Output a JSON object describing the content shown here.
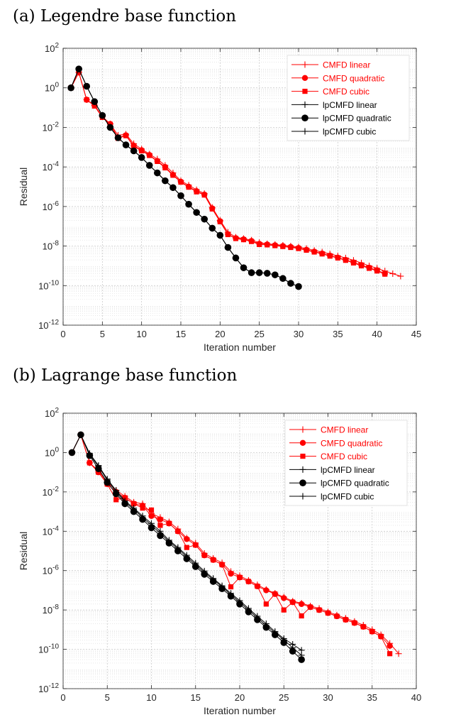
{
  "figure": {
    "caption_a": "(a) Legendre base function",
    "caption_b": "(b) Lagrange base function"
  },
  "chart_data": [
    {
      "type": "line",
      "log_y": true,
      "grid": true,
      "legend_position": "top-right",
      "xlabel": "Iteration number",
      "ylabel": "Residual",
      "xlim": [
        0,
        45
      ],
      "ylim": [
        1e-12,
        100
      ],
      "x_ticks": [
        "0",
        "5",
        "10",
        "15",
        "20",
        "25",
        "30",
        "35",
        "40",
        "45"
      ],
      "y_ticks": [
        {
          "base": "10",
          "exp": "2"
        },
        {
          "base": "10",
          "exp": "0"
        },
        {
          "base": "10",
          "exp": "-2"
        },
        {
          "base": "10",
          "exp": "-4"
        },
        {
          "base": "10",
          "exp": "-6"
        },
        {
          "base": "10",
          "exp": "-8"
        },
        {
          "base": "10",
          "exp": "-10"
        },
        {
          "base": "10",
          "exp": "-12"
        }
      ],
      "series": [
        {
          "name": "CMFD linear",
          "color": "#ff0000",
          "marker": "plus",
          "x": [
            1,
            2,
            3,
            4,
            5,
            6,
            7,
            8,
            9,
            10,
            11,
            12,
            13,
            14,
            15,
            16,
            17,
            18,
            19,
            20,
            21,
            22,
            23,
            24,
            25,
            26,
            27,
            28,
            29,
            30,
            31,
            32,
            33,
            34,
            35,
            36,
            37,
            38,
            39,
            40,
            41,
            42,
            43
          ],
          "y": [
            1,
            6,
            0.25,
            0.13,
            0.035,
            0.015,
            0.004,
            0.0045,
            0.0015,
            0.0008,
            0.00045,
            0.00025,
            0.00012,
            5e-05,
            2e-05,
            1.2e-05,
            7e-06,
            4.5e-06,
            9e-07,
            2e-07,
            5e-08,
            2.8e-08,
            2.4e-08,
            2e-08,
            1.5e-08,
            1.3e-08,
            1.2e-08,
            1.1e-08,
            1e-08,
            9e-09,
            7.5e-09,
            6e-09,
            5e-09,
            4e-09,
            3.2e-09,
            2.5e-09,
            1.9e-09,
            1.4e-09,
            1e-09,
            7.5e-10,
            5.5e-10,
            4e-10,
            3e-10
          ]
        },
        {
          "name": "CMFD quadratic",
          "color": "#ff0000",
          "marker": "circle",
          "x": [
            1,
            2,
            3,
            4,
            5,
            6,
            7,
            8,
            9,
            10,
            11,
            12,
            13,
            14,
            15,
            16,
            17,
            18,
            19,
            20,
            21,
            22,
            23,
            24,
            25,
            26,
            27,
            28,
            29,
            30,
            31,
            32,
            33,
            34,
            35,
            36,
            37,
            38,
            39,
            40,
            41
          ],
          "y": [
            1,
            6,
            0.25,
            0.13,
            0.035,
            0.015,
            0.003,
            0.004,
            0.0012,
            0.0007,
            0.0004,
            0.0002,
            0.0001,
            4e-05,
            1.8e-05,
            1e-05,
            6e-06,
            4e-06,
            8e-07,
            1.8e-07,
            4e-08,
            2.5e-08,
            2.2e-08,
            1.8e-08,
            1.3e-08,
            1.2e-08,
            1.1e-08,
            1e-08,
            9e-09,
            8e-09,
            6.5e-09,
            5.2e-09,
            4.2e-09,
            3.3e-09,
            2.6e-09,
            2e-09,
            1.5e-09,
            1.1e-09,
            8e-10,
            6e-10,
            4e-10
          ]
        },
        {
          "name": "CMFD cubic",
          "color": "#ff0000",
          "marker": "square",
          "x": [
            1,
            2,
            3,
            4,
            5,
            6,
            7,
            8,
            9,
            10,
            11,
            12,
            13,
            14,
            15,
            16,
            17,
            18,
            19,
            20,
            21,
            22,
            23,
            24,
            25,
            26,
            27,
            28,
            29,
            30,
            31,
            32,
            33,
            34,
            35,
            36,
            37,
            38,
            39,
            40,
            41
          ],
          "y": [
            1,
            6,
            0.25,
            0.12,
            0.032,
            0.014,
            0.0028,
            0.0038,
            0.0011,
            0.00065,
            0.00038,
            0.00019,
            9e-05,
            3.8e-05,
            1.7e-05,
            9.5e-06,
            5.5e-06,
            3.8e-06,
            7.5e-07,
            1.7e-07,
            3.8e-08,
            2.4e-08,
            2.1e-08,
            1.7e-08,
            1.2e-08,
            1.15e-08,
            1.05e-08,
            9.5e-09,
            8.5e-09,
            7.5e-09,
            6.2e-09,
            5e-09,
            4e-09,
            3.1e-09,
            2.5e-09,
            1.9e-09,
            1.4e-09,
            1e-09,
            7.5e-10,
            5.5e-10,
            3.8e-10
          ]
        },
        {
          "name": "lpCMFD linear",
          "color": "#000000",
          "marker": "plus",
          "x": [
            1,
            2,
            3,
            4,
            5,
            6,
            7,
            8,
            9,
            10,
            11,
            12,
            13,
            14,
            15,
            16,
            17,
            18,
            19,
            20,
            21,
            22,
            23,
            24,
            25,
            26,
            27,
            28,
            29,
            30
          ],
          "y": [
            1,
            9,
            1.2,
            0.2,
            0.04,
            0.01,
            0.003,
            0.0013,
            0.00065,
            0.0003,
            0.00012,
            5e-05,
            2e-05,
            9e-06,
            3.5e-06,
            1.3e-06,
            5e-07,
            2.3e-07,
            8e-08,
            3.5e-08,
            8.5e-09,
            2.5e-09,
            8e-10,
            4.5e-10,
            4.5e-10,
            4.2e-10,
            3.5e-10,
            2.3e-10,
            1.3e-10,
            9e-11
          ]
        },
        {
          "name": "lpCMFD quadratic",
          "color": "#000000",
          "marker": "filled-circle",
          "x": [
            1,
            2,
            3,
            4,
            5,
            6,
            7,
            8,
            9,
            10,
            11,
            12,
            13,
            14,
            15,
            16,
            17,
            18,
            19,
            20,
            21,
            22,
            23,
            24,
            25,
            26,
            27,
            28,
            29,
            30
          ],
          "y": [
            1,
            9,
            1.2,
            0.2,
            0.04,
            0.01,
            0.003,
            0.0013,
            0.00065,
            0.0003,
            0.00012,
            5e-05,
            2e-05,
            9e-06,
            3.5e-06,
            1.3e-06,
            5e-07,
            2.3e-07,
            8e-08,
            3.5e-08,
            8.5e-09,
            2.5e-09,
            8e-10,
            4.5e-10,
            4.5e-10,
            4.2e-10,
            3.5e-10,
            2.3e-10,
            1.3e-10,
            9e-11
          ]
        },
        {
          "name": "lpCMFD cubic",
          "color": "#000000",
          "marker": "plus",
          "x": [
            1,
            2,
            3,
            4,
            5,
            6,
            7,
            8,
            9,
            10,
            11,
            12,
            13,
            14,
            15,
            16,
            17,
            18,
            19,
            20,
            21,
            22,
            23,
            24,
            25,
            26,
            27,
            28,
            29,
            30
          ],
          "y": [
            1,
            9,
            1.2,
            0.2,
            0.04,
            0.01,
            0.003,
            0.0013,
            0.00065,
            0.0003,
            0.00012,
            5e-05,
            2e-05,
            9e-06,
            3.5e-06,
            1.3e-06,
            5e-07,
            2.3e-07,
            8e-08,
            3.5e-08,
            8.5e-09,
            2.5e-09,
            8e-10,
            4.5e-10,
            4.5e-10,
            4.2e-10,
            3.5e-10,
            2.3e-10,
            1.3e-10,
            9e-11
          ]
        }
      ]
    },
    {
      "type": "line",
      "log_y": true,
      "grid": true,
      "legend_position": "top-right",
      "xlabel": "Iteration number",
      "ylabel": "Residual",
      "xlim": [
        0,
        40
      ],
      "ylim": [
        1e-12,
        100
      ],
      "x_ticks": [
        "0",
        "5",
        "10",
        "15",
        "20",
        "25",
        "30",
        "35",
        "40"
      ],
      "y_ticks": [
        {
          "base": "10",
          "exp": "2"
        },
        {
          "base": "10",
          "exp": "0"
        },
        {
          "base": "10",
          "exp": "-2"
        },
        {
          "base": "10",
          "exp": "-4"
        },
        {
          "base": "10",
          "exp": "-6"
        },
        {
          "base": "10",
          "exp": "-8"
        },
        {
          "base": "10",
          "exp": "-10"
        },
        {
          "base": "10",
          "exp": "-12"
        }
      ],
      "series": [
        {
          "name": "CMFD linear",
          "color": "#ff0000",
          "marker": "plus",
          "x": [
            1,
            2,
            3,
            4,
            5,
            6,
            7,
            8,
            9,
            10,
            11,
            12,
            13,
            14,
            15,
            16,
            17,
            18,
            19,
            20,
            21,
            22,
            23,
            24,
            25,
            26,
            27,
            28,
            29,
            30,
            31,
            32,
            33,
            34,
            35,
            36,
            37,
            38
          ],
          "y": [
            1,
            8,
            0.3,
            0.12,
            0.03,
            0.012,
            0.006,
            0.003,
            0.0025,
            0.0008,
            0.0005,
            0.0003,
            0.00013,
            4.5e-05,
            2.5e-05,
            7.5e-06,
            4.2e-06,
            2.5e-06,
            9e-07,
            5.5e-07,
            3.2e-07,
            1.9e-07,
            1.1e-07,
            7e-08,
            4.5e-08,
            2.8e-08,
            2.2e-08,
            1.6e-08,
            1.2e-08,
            8e-09,
            5.5e-09,
            3.8e-09,
            2.6e-09,
            1.7e-09,
            1e-09,
            5.5e-10,
            2e-10,
            6e-11
          ]
        },
        {
          "name": "CMFD quadratic",
          "color": "#ff0000",
          "marker": "circle",
          "x": [
            1,
            2,
            3,
            4,
            5,
            6,
            7,
            8,
            9,
            10,
            11,
            12,
            13,
            14,
            15,
            16,
            17,
            18,
            19,
            20,
            21,
            22,
            23,
            24,
            25,
            26,
            27,
            28,
            29,
            30,
            31,
            32,
            33,
            34,
            35,
            36,
            37
          ],
          "y": [
            1,
            8,
            0.3,
            0.1,
            0.025,
            0.01,
            0.005,
            0.0025,
            0.002,
            0.0006,
            0.0004,
            0.00025,
            0.0001,
            4e-05,
            2e-05,
            6e-06,
            3.5e-06,
            2e-06,
            7e-07,
            4.5e-07,
            2.8e-07,
            1.6e-07,
            1e-07,
            6.5e-08,
            4e-08,
            2.5e-08,
            2e-08,
            1.4e-08,
            1e-08,
            7e-09,
            4.8e-09,
            3.2e-09,
            2.2e-09,
            1.4e-09,
            8e-10,
            4.5e-10,
            1.5e-10
          ]
        },
        {
          "name": "CMFD cubic",
          "color": "#ff0000",
          "marker": "square",
          "x": [
            1,
            2,
            3,
            4,
            5,
            6,
            7,
            8,
            9,
            10,
            11,
            12,
            13,
            14,
            15,
            16,
            17,
            18,
            19,
            20,
            21,
            22,
            23,
            24,
            25,
            26,
            27,
            28,
            29,
            30,
            31,
            32,
            33,
            34,
            35,
            36,
            37
          ],
          "y": [
            1,
            8,
            0.3,
            0.1,
            0.025,
            0.004,
            0.005,
            0.0025,
            0.0015,
            0.0012,
            0.0002,
            0.00025,
            0.0001,
            1.5e-05,
            2e-05,
            6e-06,
            3.5e-06,
            2e-06,
            1.5e-07,
            4.5e-07,
            2.8e-07,
            1.6e-07,
            2e-08,
            6.5e-08,
            1e-08,
            2.5e-08,
            5e-09,
            1.4e-08,
            1e-08,
            7e-09,
            4.8e-09,
            3.2e-09,
            2.2e-09,
            1.4e-09,
            8e-10,
            4.5e-10,
            6e-11
          ]
        },
        {
          "name": "lpCMFD linear",
          "color": "#000000",
          "marker": "plus",
          "x": [
            1,
            2,
            3,
            4,
            5,
            6,
            7,
            8,
            9,
            10,
            11,
            12,
            13,
            14,
            15,
            16,
            17,
            18,
            19,
            20,
            21,
            22,
            23,
            24,
            25,
            26,
            27
          ],
          "y": [
            1,
            8,
            0.8,
            0.2,
            0.04,
            0.01,
            0.003,
            0.0013,
            0.0005,
            0.0002,
            8e-05,
            3e-05,
            1.3e-05,
            5e-06,
            2e-06,
            8e-07,
            3.5e-07,
            1.5e-07,
            6e-08,
            2.5e-08,
            1e-08,
            4e-09,
            1.6e-09,
            7e-10,
            3e-10,
            1.2e-10,
            5e-11
          ]
        },
        {
          "name": "lpCMFD quadratic",
          "color": "#000000",
          "marker": "filled-circle",
          "x": [
            1,
            2,
            3,
            4,
            5,
            6,
            7,
            8,
            9,
            10,
            11,
            12,
            13,
            14,
            15,
            16,
            17,
            18,
            19,
            20,
            21,
            22,
            23,
            24,
            25,
            26,
            27
          ],
          "y": [
            1,
            8,
            0.7,
            0.15,
            0.03,
            0.008,
            0.0025,
            0.001,
            0.0004,
            0.00015,
            6e-05,
            2.5e-05,
            1e-05,
            4e-06,
            1.6e-06,
            6.5e-07,
            2.8e-07,
            1.2e-07,
            5e-08,
            2e-08,
            8e-09,
            3.2e-09,
            1.3e-09,
            5.5e-10,
            2.2e-10,
            8e-11,
            3e-11
          ]
        },
        {
          "name": "lpCMFD cubic",
          "color": "#000000",
          "marker": "plus",
          "x": [
            1,
            2,
            3,
            4,
            5,
            6,
            7,
            8,
            9,
            10,
            11,
            12,
            13,
            14,
            15,
            16,
            17,
            18,
            19,
            20,
            21,
            22,
            23,
            24,
            25,
            26,
            27
          ],
          "y": [
            1,
            8,
            0.9,
            0.22,
            0.045,
            0.012,
            0.0035,
            0.0015,
            0.0006,
            0.00025,
            0.0001,
            3.5e-05,
            1.5e-05,
            6e-06,
            2.4e-06,
            9.5e-07,
            4e-07,
            1.7e-07,
            7e-08,
            3e-08,
            1.2e-08,
            4.8e-09,
            2e-09,
            8e-10,
            3.5e-10,
            1.8e-10,
            9e-11
          ]
        }
      ]
    }
  ]
}
